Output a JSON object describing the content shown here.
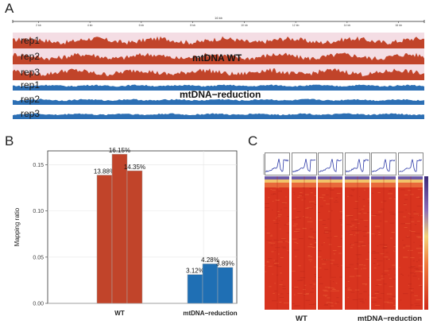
{
  "panel_a": {
    "letter": "A",
    "ruler_title": "16 kb",
    "ruler_ticks": [
      "2 kb",
      "4 kb",
      "6 kb",
      "8 kb",
      "10 kb",
      "12 kb",
      "14 kb",
      "16 kb"
    ],
    "tracks": [
      {
        "label": "rep1",
        "group": "wt",
        "color": "#c1442a"
      },
      {
        "label": "rep2",
        "group": "wt",
        "color": "#c1442a"
      },
      {
        "label": "rep3",
        "group": "wt",
        "color": "#c1442a"
      },
      {
        "label": "rep1",
        "group": "red",
        "color": "#2c6fb4"
      },
      {
        "label": "rep2",
        "group": "red",
        "color": "#2c6fb4"
      },
      {
        "label": "rep3",
        "group": "red",
        "color": "#2c6fb4"
      }
    ],
    "group_wt": "mtDNA WT",
    "group_red": "mtDNA−reduction"
  },
  "panel_b": {
    "letter": "B",
    "chart_data": {
      "type": "bar",
      "ylabel": "Mapping ratio",
      "ylim": [
        0,
        0.165
      ],
      "yticks": [
        "0.00",
        "0.05",
        "0.10",
        "0.15"
      ],
      "ytick_values": [
        0,
        0.05,
        0.1,
        0.15
      ],
      "categories": [
        "WT",
        "mtDNA−reduction"
      ],
      "groups": [
        {
          "category": "WT",
          "color": "#c1442a",
          "values": [
            0.1388,
            0.1615,
            0.1435
          ],
          "labels": [
            "13.88%",
            "16.15%",
            "14.35%"
          ]
        },
        {
          "category": "mtDNA−reduction",
          "color": "#1f6fb4",
          "values": [
            0.0312,
            0.0428,
            0.0389
          ],
          "labels": [
            "3.12%",
            "4.28%",
            "3.89%"
          ]
        }
      ],
      "grid": true
    }
  },
  "panel_c": {
    "letter": "C",
    "x_labels": [
      "WT",
      "mtDNA−reduction"
    ],
    "n_columns": 6
  }
}
